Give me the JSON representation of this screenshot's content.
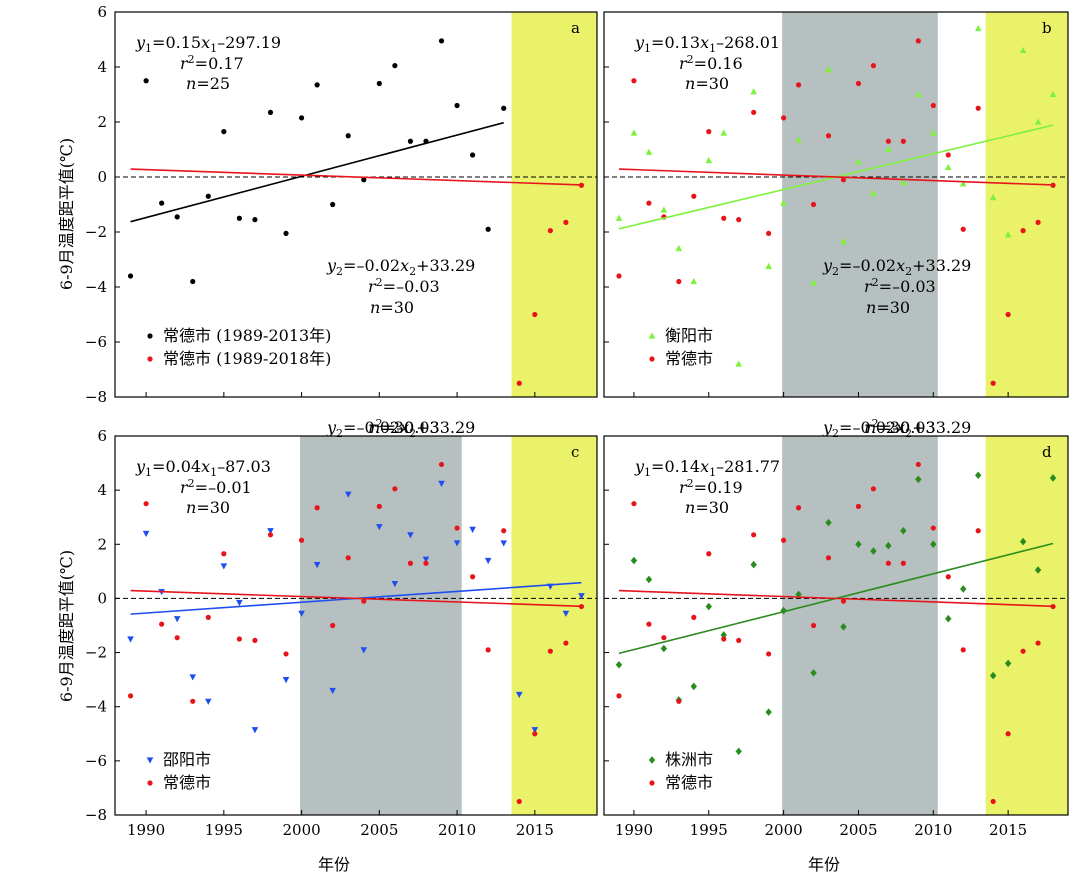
{
  "figure": {
    "ylabel": "6-9月温度距平值(℃)",
    "xlabel": "年份",
    "xlim": [
      1988,
      2019
    ],
    "ylim": [
      -8,
      6
    ],
    "xticks": [
      1990,
      1995,
      2000,
      2005,
      2010,
      2015
    ],
    "yticks": [
      -8,
      -6,
      -4,
      -2,
      0,
      2,
      4,
      6
    ]
  },
  "colors": {
    "changde": "#e8141b",
    "black": "#000000",
    "hengyang": "#7df23a",
    "shaoyang": "#1f4ef0",
    "zhuzhou": "#2a8c1e",
    "gray_band": "#b7c0c0",
    "yellow_band": "#eaf26a"
  },
  "changde_fit": {
    "slope": -0.02,
    "intercept": 33.29,
    "r2": -0.03,
    "n": 30
  },
  "chart_data": [
    {
      "type": "scatter",
      "panel_label": "a",
      "bands": [
        {
          "from": 2013.5,
          "to": 2019,
          "kind": "yellow"
        }
      ],
      "series": [
        {
          "name": "常德市 (1989-2013年)",
          "color": "#000000",
          "marker": "circle",
          "x": [
            1989,
            1990,
            1991,
            1992,
            1993,
            1994,
            1995,
            1996,
            1997,
            1998,
            1999,
            2000,
            2001,
            2002,
            2003,
            2004,
            2005,
            2006,
            2007,
            2008,
            2009,
            2010,
            2011,
            2012,
            2013
          ],
          "y": [
            -3.6,
            3.5,
            -0.95,
            -1.45,
            -3.8,
            -0.7,
            1.65,
            -1.5,
            -1.55,
            2.35,
            -2.05,
            2.15,
            3.35,
            -1.0,
            1.5,
            -0.1,
            3.4,
            4.05,
            1.3,
            1.3,
            4.95,
            2.6,
            0.8,
            -1.9,
            2.5
          ],
          "fit": {
            "x": [
              1989,
              2013
            ],
            "slope": 0.15,
            "intercept": -297.19
          }
        },
        {
          "name": "常德市 (1989-2018年)",
          "color": "#e8141b",
          "marker": "circle",
          "x": [
            2014,
            2015,
            2016,
            2017,
            2018
          ],
          "y": [
            -7.5,
            -5.0,
            -1.95,
            -1.65,
            -0.3
          ],
          "fit": {
            "x": [
              1989,
              2018
            ],
            "slope": -0.02,
            "intercept": 33.29
          }
        }
      ],
      "equation1": {
        "y": "y",
        "sub1": "1",
        "eq": "=0.15",
        "x": "x",
        "sub2": "1",
        "rest": "–297.19"
      },
      "r2_1": "=0.17",
      "n1": "=25",
      "equation2": {
        "y": "y",
        "sub1": "2",
        "eq": "=–0.02",
        "x": "x",
        "sub2": "2",
        "rest": "+33.29"
      },
      "r2_2": "=–0.03",
      "n2": "=30",
      "legend": [
        "常德市 (1989-2013年)",
        "常德市 (1989-2018年)"
      ]
    },
    {
      "type": "scatter",
      "panel_label": "b",
      "bands": [
        {
          "from": 1999.9,
          "to": 2010.3,
          "kind": "gray"
        },
        {
          "from": 2013.5,
          "to": 2019,
          "kind": "yellow"
        }
      ],
      "series": [
        {
          "name": "衡阳市",
          "color": "#7df23a",
          "marker": "triangle",
          "x": [
            1989,
            1990,
            1991,
            1992,
            1993,
            1994,
            1995,
            1996,
            1997,
            1998,
            1999,
            2000,
            2001,
            2002,
            2003,
            2004,
            2005,
            2006,
            2007,
            2008,
            2009,
            2010,
            2011,
            2012,
            2013,
            2014,
            2015,
            2016,
            2017,
            2018
          ],
          "y": [
            -1.5,
            1.6,
            0.9,
            -1.2,
            -2.6,
            -3.8,
            0.6,
            1.6,
            -6.8,
            3.1,
            -3.25,
            -0.95,
            1.35,
            -3.85,
            3.9,
            -2.35,
            0.55,
            -0.6,
            1.0,
            -0.2,
            3.0,
            1.6,
            0.35,
            -0.25,
            5.4,
            -0.75,
            -2.1,
            4.6,
            2.0,
            3.0
          ],
          "fit": {
            "x": [
              1989,
              2018
            ],
            "slope": 0.13,
            "intercept": -268.01
          }
        },
        {
          "name": "常德市",
          "color": "#e8141b",
          "marker": "circle",
          "x": [
            1989,
            1990,
            1991,
            1992,
            1993,
            1994,
            1995,
            1996,
            1997,
            1998,
            1999,
            2000,
            2001,
            2002,
            2003,
            2004,
            2005,
            2006,
            2007,
            2008,
            2009,
            2010,
            2011,
            2012,
            2013,
            2014,
            2015,
            2016,
            2017,
            2018
          ],
          "y": [
            -3.6,
            3.5,
            -0.95,
            -1.45,
            -3.8,
            -0.7,
            1.65,
            -1.5,
            -1.55,
            2.35,
            -2.05,
            2.15,
            3.35,
            -1.0,
            1.5,
            -0.1,
            3.4,
            4.05,
            1.3,
            1.3,
            4.95,
            2.6,
            0.8,
            -1.9,
            2.5,
            -7.5,
            -5.0,
            -1.95,
            -1.65,
            -0.3
          ],
          "fit": {
            "x": [
              1989,
              2018
            ],
            "slope": -0.02,
            "intercept": 33.29
          }
        }
      ],
      "equation1": {
        "y": "y",
        "sub1": "1",
        "eq": "=0.13",
        "x": "x",
        "sub2": "1",
        "rest": "–268.01"
      },
      "r2_1": "=0.16",
      "n1": "=30",
      "equation2": {
        "y": "y",
        "sub1": "2",
        "eq": "=–0.02",
        "x": "x",
        "sub2": "2",
        "rest": "+33.29"
      },
      "r2_2": "=–0.03",
      "n2": "=30",
      "legend": [
        "衡阳市",
        "常德市"
      ]
    },
    {
      "type": "scatter",
      "panel_label": "c",
      "bands": [
        {
          "from": 1999.9,
          "to": 2010.3,
          "kind": "gray"
        },
        {
          "from": 2013.5,
          "to": 2019,
          "kind": "yellow"
        }
      ],
      "series": [
        {
          "name": "邵阳市",
          "color": "#1f4ef0",
          "marker": "triangle-down",
          "x": [
            1989,
            1990,
            1991,
            1992,
            1993,
            1994,
            1995,
            1996,
            1997,
            1998,
            1999,
            2000,
            2001,
            2002,
            2003,
            2004,
            2005,
            2006,
            2007,
            2008,
            2009,
            2010,
            2011,
            2012,
            2013,
            2014,
            2015,
            2016,
            2017,
            2018
          ],
          "y": [
            -1.5,
            2.4,
            0.25,
            -0.75,
            -2.9,
            -3.8,
            1.2,
            -0.15,
            -4.85,
            2.5,
            -3.0,
            -0.55,
            1.25,
            -3.4,
            3.85,
            -1.9,
            2.65,
            0.55,
            2.35,
            1.45,
            4.25,
            2.05,
            2.55,
            1.4,
            2.05,
            -3.55,
            -4.85,
            0.45,
            -0.55,
            0.1
          ],
          "fit": {
            "x": [
              1989,
              2018
            ],
            "slope": 0.04,
            "intercept": -87.03
          }
        },
        {
          "name": "常德市",
          "color": "#e8141b",
          "marker": "circle",
          "x": [
            1989,
            1990,
            1991,
            1992,
            1993,
            1994,
            1995,
            1996,
            1997,
            1998,
            1999,
            2000,
            2001,
            2002,
            2003,
            2004,
            2005,
            2006,
            2007,
            2008,
            2009,
            2010,
            2011,
            2012,
            2013,
            2014,
            2015,
            2016,
            2017,
            2018
          ],
          "y": [
            -3.6,
            3.5,
            -0.95,
            -1.45,
            -3.8,
            -0.7,
            1.65,
            -1.5,
            -1.55,
            2.35,
            -2.05,
            2.15,
            3.35,
            -1.0,
            1.5,
            -0.1,
            3.4,
            4.05,
            1.3,
            1.3,
            4.95,
            2.6,
            0.8,
            -1.9,
            2.5,
            -7.5,
            -5.0,
            -1.95,
            -1.65,
            -0.3
          ],
          "fit": {
            "x": [
              1989,
              2018
            ],
            "slope": -0.02,
            "intercept": 33.29
          }
        }
      ],
      "equation1": {
        "y": "y",
        "sub1": "1",
        "eq": "=0.04",
        "x": "x",
        "sub2": "1",
        "rest": "–87.03"
      },
      "r2_1": "=–0.01",
      "n1": "=30",
      "equation2": {
        "y": "y",
        "sub1": "2",
        "eq": "=–0.02",
        "x": "x",
        "sub2": "2",
        "rest": "+33.29"
      },
      "r2_2": "=–0.03",
      "n2": "=30",
      "legend": [
        "邵阳市",
        "常德市"
      ]
    },
    {
      "type": "scatter",
      "panel_label": "d",
      "bands": [
        {
          "from": 1999.9,
          "to": 2010.3,
          "kind": "gray"
        },
        {
          "from": 2013.5,
          "to": 2019,
          "kind": "yellow"
        }
      ],
      "series": [
        {
          "name": "株洲市",
          "color": "#2a8c1e",
          "marker": "diamond",
          "x": [
            1989,
            1990,
            1991,
            1992,
            1993,
            1994,
            1995,
            1996,
            1997,
            1998,
            1999,
            2000,
            2001,
            2002,
            2003,
            2004,
            2005,
            2006,
            2007,
            2008,
            2009,
            2010,
            2011,
            2012,
            2013,
            2014,
            2015,
            2016,
            2017,
            2018
          ],
          "y": [
            -2.45,
            1.4,
            0.7,
            -1.85,
            -3.75,
            -3.25,
            -0.3,
            -1.35,
            -5.65,
            1.25,
            -4.2,
            -0.45,
            0.15,
            -2.75,
            2.8,
            -1.05,
            2.0,
            1.75,
            1.95,
            2.5,
            4.4,
            2.0,
            -0.75,
            0.35,
            4.55,
            -2.85,
            -2.4,
            2.1,
            1.05,
            4.45
          ],
          "fit": {
            "x": [
              1989,
              2018
            ],
            "slope": 0.14,
            "intercept": -281.77
          }
        },
        {
          "name": "常德市",
          "color": "#e8141b",
          "marker": "circle",
          "x": [
            1989,
            1990,
            1991,
            1992,
            1993,
            1994,
            1995,
            1996,
            1997,
            1998,
            1999,
            2000,
            2001,
            2002,
            2003,
            2004,
            2005,
            2006,
            2007,
            2008,
            2009,
            2010,
            2011,
            2012,
            2013,
            2014,
            2015,
            2016,
            2017,
            2018
          ],
          "y": [
            -3.6,
            3.5,
            -0.95,
            -1.45,
            -3.8,
            -0.7,
            1.65,
            -1.5,
            -1.55,
            2.35,
            -2.05,
            2.15,
            3.35,
            -1.0,
            1.5,
            -0.1,
            3.4,
            4.05,
            1.3,
            1.3,
            4.95,
            2.6,
            0.8,
            -1.9,
            2.5,
            -7.5,
            -5.0,
            -1.95,
            -1.65,
            -0.3
          ],
          "fit": {
            "x": [
              1989,
              2018
            ],
            "slope": -0.02,
            "intercept": 33.29
          }
        }
      ],
      "equation1": {
        "y": "y",
        "sub1": "1",
        "eq": "=0.14",
        "x": "x",
        "sub2": "1",
        "rest": "–281.77"
      },
      "r2_1": "=0.19",
      "n1": "=30",
      "equation2": {
        "y": "y",
        "sub1": "2",
        "eq": "=–0.02",
        "x": "x",
        "sub2": "2",
        "rest": "+33.29"
      },
      "r2_2": "=–0.03",
      "n2": "=30",
      "legend": [
        "株洲市",
        "常德市"
      ]
    }
  ]
}
